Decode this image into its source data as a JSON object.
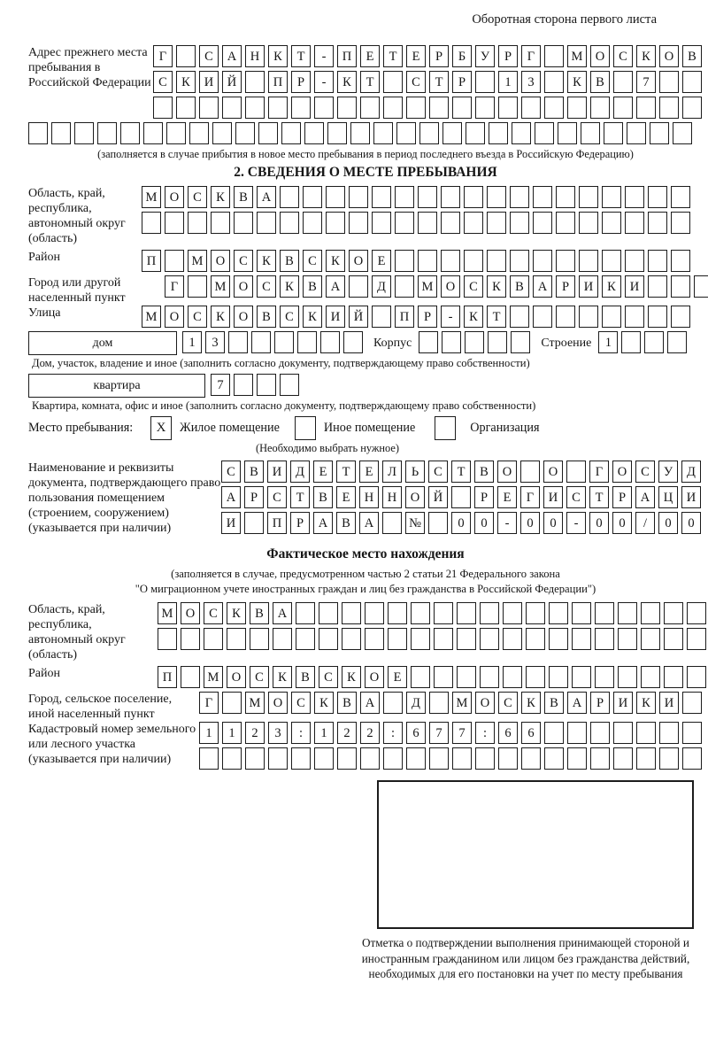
{
  "page": {
    "header_note": "Оборотная сторона первого листа"
  },
  "prev": {
    "label": "Адрес прежнего места пребывания в Российской Федерации",
    "rows": [
      {
        "text": "Г САНКТ-ПЕТЕРБУРГ МОСКОВ",
        "len": 24
      },
      {
        "text": "СКИЙ ПР-КТ СТР 13 КВ 7",
        "len": 24
      },
      {
        "text": "",
        "len": 24
      }
    ],
    "row_full": {
      "text": "",
      "len": 29
    },
    "note": "(заполняется в случае прибытия в новое место пребывания в период последнего въезда в Российскую Федерацию)"
  },
  "s2": {
    "title": "2. СВЕДЕНИЯ О МЕСТЕ ПРЕБЫВАНИЯ",
    "oblast": {
      "label": "Область, край, республика, автономный округ (область)",
      "rows": [
        {
          "text": "МОСКВА",
          "len": 24
        },
        {
          "text": "",
          "len": 24
        }
      ]
    },
    "raion": {
      "label": "Район",
      "row": {
        "text": "П МОСКВСКОЕ",
        "len": 24
      }
    },
    "gorod": {
      "label": "Город или другой населенный пункт",
      "row": {
        "text": "Г МОСКВА Д МОСКВАРИКИ",
        "len": 24
      }
    },
    "ulitsa": {
      "label": "Улица",
      "row": {
        "text": "МОСКОВСКИЙ ПР-КТ",
        "len": 24
      }
    },
    "dom": {
      "label": "дом",
      "value": {
        "text": "13",
        "len": 8
      },
      "korpus_label": "Корпус",
      "korpus": {
        "text": "",
        "len": 5
      },
      "stroenie_label": "Строение",
      "stroenie": {
        "text": "1",
        "len": 4
      },
      "caption": "Дом, участок, владение и иное (заполнить согласно документу, подтверждающему право собственности)"
    },
    "kvartira": {
      "label": "квартира",
      "value": {
        "text": "7",
        "len": 4
      },
      "caption": "Квартира, комната, офис и иное (заполнить согласно документу, подтверждающему право собственности)"
    },
    "mesto": {
      "label": "Место пребывания:",
      "options": [
        {
          "label": "Жилое помещение",
          "mark": "X"
        },
        {
          "label": "Иное помещение",
          "mark": ""
        },
        {
          "label": "Организация",
          "mark": ""
        }
      ],
      "note": "(Необходимо выбрать нужное)"
    },
    "doc": {
      "label": "Наименование и реквизиты документа, подтверждающего право пользования помещением (строением, сооружением) (указывается при наличии)",
      "rows": [
        {
          "text": "СВИДЕТЕЛЬСТВО О ГОСУД",
          "len": 21
        },
        {
          "text": "АРСТВЕННОЙ РЕГИСТРАЦИ",
          "len": 21
        },
        {
          "text": "И ПРАВА № 00-00-00/000",
          "len": 21
        }
      ]
    }
  },
  "fact": {
    "title": "Фактическое место нахождения",
    "note1": "(заполняется в случае, предусмотренном частью 2 статьи 21 Федерального закона",
    "note2": "\"О миграционном учете иностранных граждан и лиц без гражданства в Российской Федерации\")",
    "oblast": {
      "label": "Область, край, республика, автономный округ (область)",
      "rows": [
        {
          "text": "МОСКВА",
          "len": 24
        },
        {
          "text": "",
          "len": 24
        }
      ]
    },
    "raion": {
      "label": "Район",
      "row": {
        "text": "П МОСКВСКОЕ",
        "len": 24
      }
    },
    "gorod": {
      "label": "Город, сельское поселение, иной населенный пункт",
      "row": {
        "text": "Г МОСКВА Д МОСКВАРИКИ",
        "len": 22
      }
    },
    "kadastr": {
      "label": "Кадастровый номер земельного или лесного участка (указывается при наличии)",
      "rows": [
        {
          "text": "1123:122:677:66",
          "len": 22
        },
        {
          "text": "",
          "len": 22
        }
      ]
    },
    "stamp_caption": "Отметка о подтверждении выполнения принимающей стороной и иностранным гражданином или лицом без гражданства действий, необходимых для его постановки на учет по месту пребывания"
  }
}
